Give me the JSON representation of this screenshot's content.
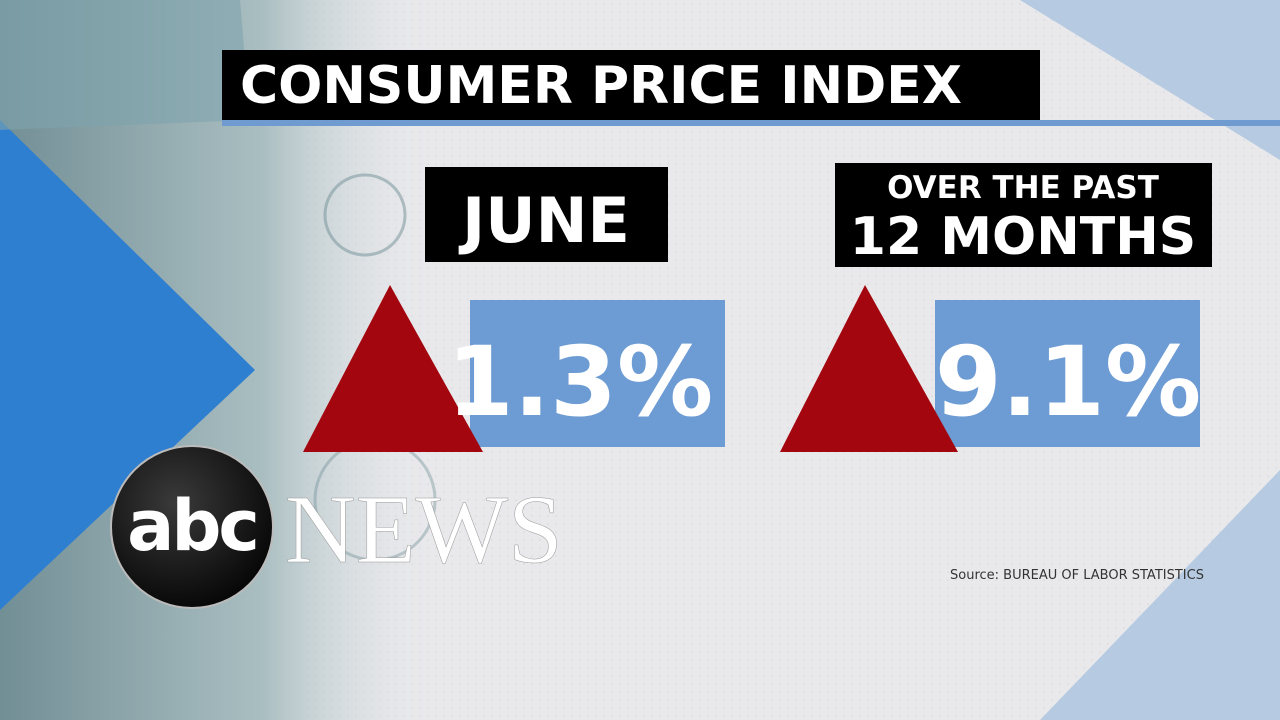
{
  "title": "CONSUMER PRICE INDEX",
  "panels": [
    {
      "label": [
        "JUNE"
      ],
      "value": "1.3%"
    },
    {
      "label": [
        "OVER THE PAST",
        "12 MONTHS"
      ],
      "value": "9.1%"
    }
  ],
  "logo": {
    "mark": "abc",
    "wordmark": "NEWS"
  },
  "source": "Source: BUREAU OF LABOR STATISTICS"
}
